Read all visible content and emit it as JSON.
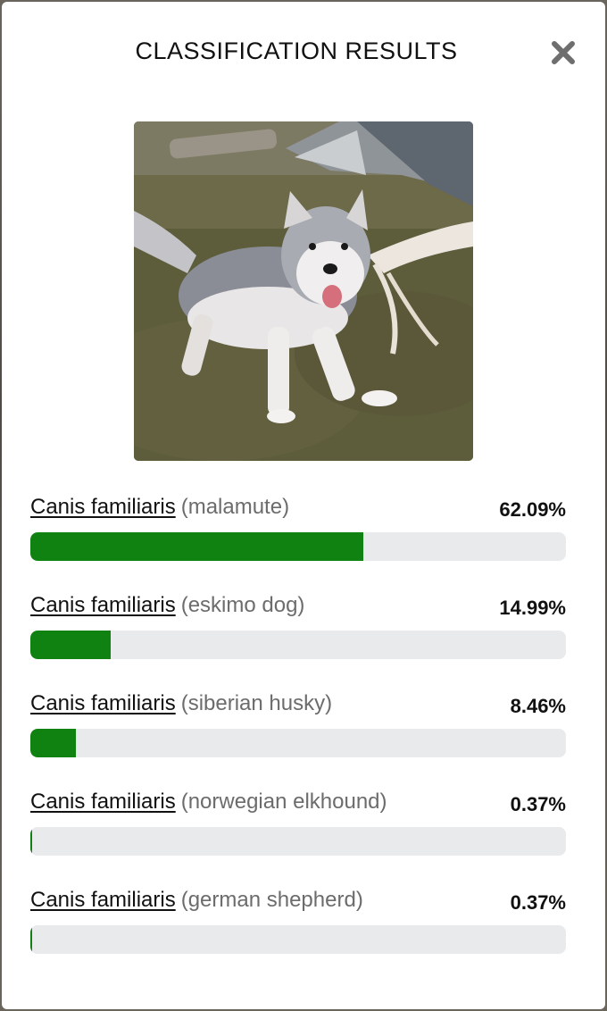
{
  "modal": {
    "title": "CLASSIFICATION RESULTS",
    "close_icon": "close-icon"
  },
  "photo": {
    "subject_icon": "dog-photo"
  },
  "results": [
    {
      "species": "Canis familiaris",
      "breed": "(malamute)",
      "percent_label": "62.09%",
      "fraction": 0.6209
    },
    {
      "species": "Canis familiaris",
      "breed": "(eskimo dog)",
      "percent_label": "14.99%",
      "fraction": 0.1499
    },
    {
      "species": "Canis familiaris",
      "breed": "(siberian husky)",
      "percent_label": "8.46%",
      "fraction": 0.0846
    },
    {
      "species": "Canis familiaris",
      "breed": "(norwegian elkhound)",
      "percent_label": "0.37%",
      "fraction": 0.0037
    },
    {
      "species": "Canis familiaris",
      "breed": "(german shepherd)",
      "percent_label": "0.37%",
      "fraction": 0.0037
    }
  ],
  "colors": {
    "bar_fill": "#0f8212",
    "bar_track": "#e8eaec",
    "breed_text": "#6c6c6c"
  }
}
